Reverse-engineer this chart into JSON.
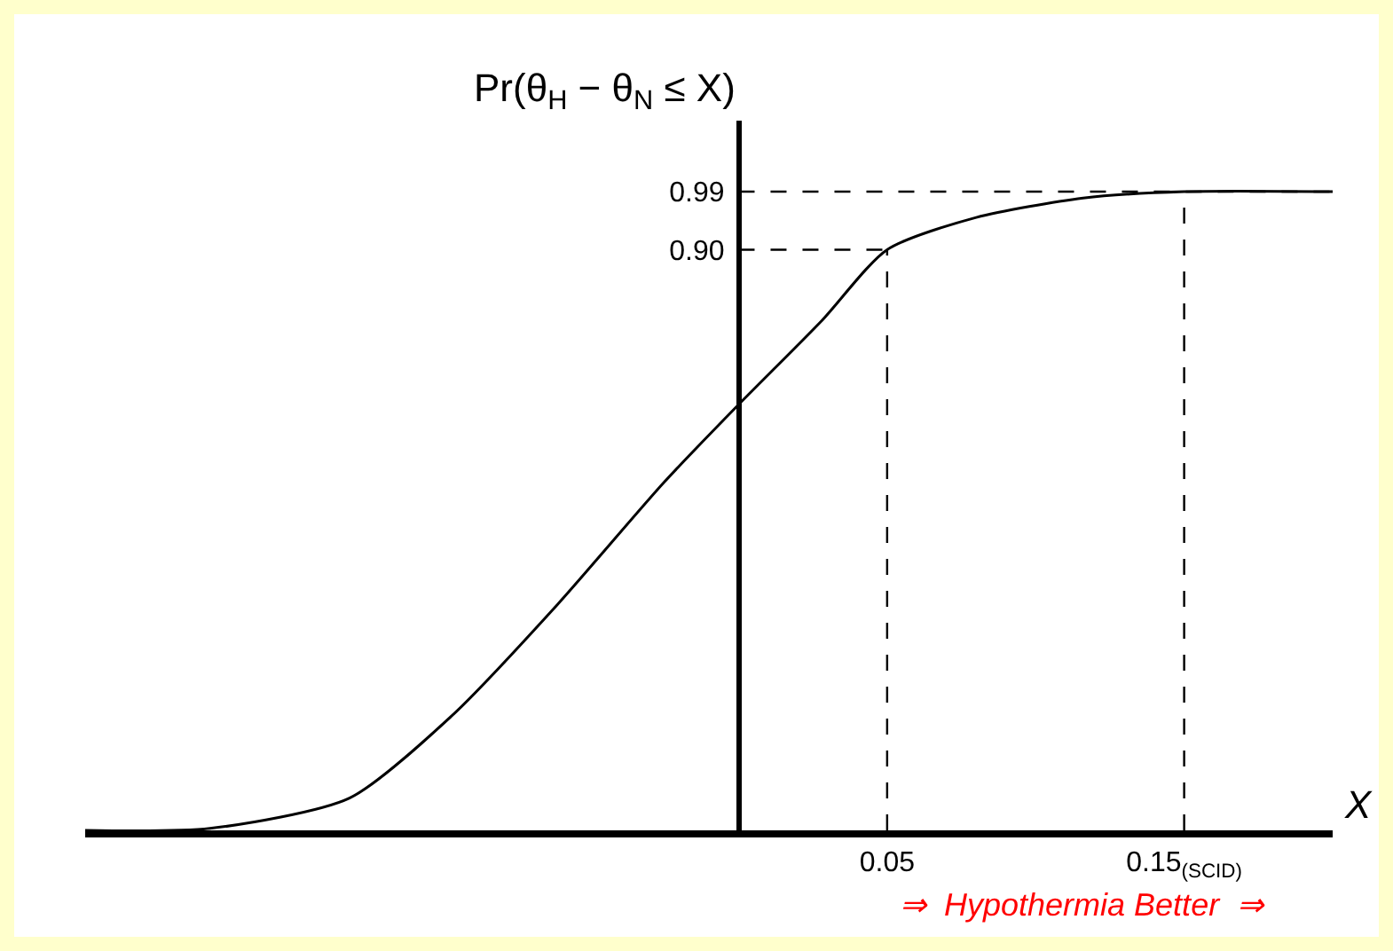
{
  "chart_data": {
    "type": "line",
    "xlabel": "X",
    "ylabel": "Pr(θ$_{H}$ − θ$_{N}$ ≤ X)",
    "x": [
      -0.22,
      -0.178,
      -0.131,
      -0.096,
      -0.061,
      -0.025,
      0,
      0.028,
      0.05,
      0.08,
      0.116,
      0.15,
      0.2
    ],
    "series": [
      {
        "color": "#000000",
        "values": [
          0,
          0.003,
          0.05,
          0.18,
          0.35,
          0.54,
          0.66,
          0.79,
          0.9,
          0.95,
          0.98,
          0.99,
          0.99
        ]
      }
    ],
    "xlim": [
      -0.22,
      0.2
    ],
    "ylim": [
      0,
      1.1
    ],
    "xticks": [
      0.05,
      {
        "value": 0.15,
        "label": "0.15$_{(SCID)}$"
      }
    ],
    "yticks": [
      {
        "value": 0.9,
        "label": "0.90"
      },
      0.99
    ],
    "ref_lines": [
      {
        "axis": "y",
        "value": 0.99,
        "line_style": "dashed"
      },
      {
        "axis": "y",
        "value": 0.9,
        "line_style": "dashed"
      },
      {
        "axis": "x",
        "value": 0.05,
        "line_style": "dashed"
      },
      {
        "axis": "x",
        "value": 0.15,
        "line_style": "dashed"
      }
    ],
    "annotations": [
      "⇒  Hypothermia Better  ⇒"
    ],
    "grid": false,
    "marker": "none",
    "line_style": "solid"
  }
}
